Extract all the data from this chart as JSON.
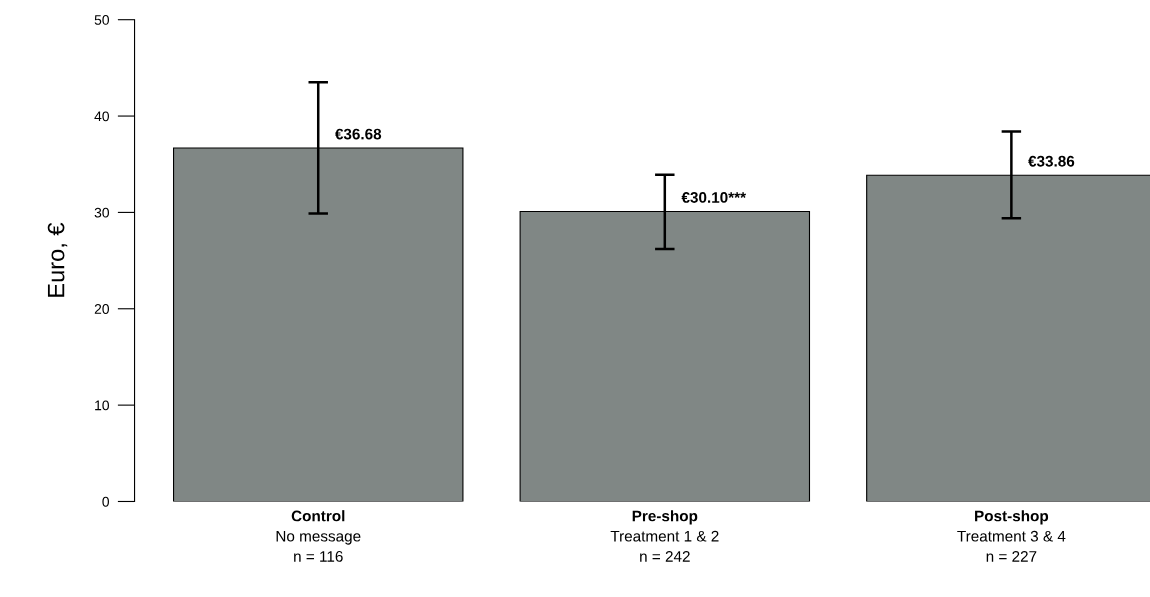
{
  "chart_data": {
    "type": "bar",
    "ylabel": "Euro, €",
    "categories": [
      "Control\nNo message\nn = 116",
      "Pre-shop\nTreatment 1 & 2\nn = 242",
      "Post-shop\nTreatment 3 & 4\nn = 227"
    ],
    "values": [
      36.68,
      30.1,
      33.86
    ],
    "errors": [
      [
        29.9,
        43.5
      ],
      [
        26.2,
        33.9
      ],
      [
        29.4,
        38.4
      ]
    ],
    "value_labels": [
      "€36.68",
      "€30.10***",
      "€33.86"
    ],
    "color": "#808785",
    "ylim": [
      0,
      50
    ],
    "yticks": [
      0,
      10,
      20,
      30,
      40,
      50
    ],
    "grid": false,
    "legend": false
  }
}
